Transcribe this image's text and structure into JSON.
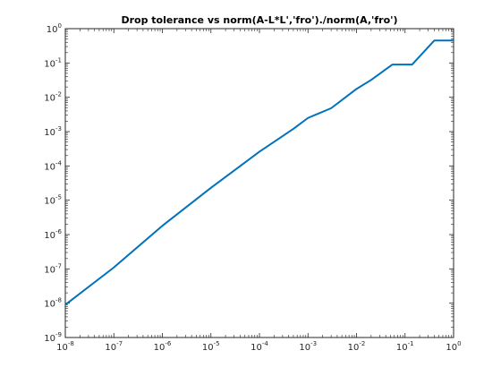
{
  "chart_data": {
    "type": "line",
    "title": "Drop tolerance vs norm(A-L*L','fro')./norm(A,'fro')",
    "xlabel": "",
    "ylabel": "",
    "x_scale": "log",
    "y_scale": "log",
    "xlim": [
      1e-08,
      1
    ],
    "ylim": [
      1e-09,
      1
    ],
    "grid": false,
    "line_color": "#0072bd",
    "x_ticks": [
      {
        "base": "10",
        "exp": "-8",
        "value": 1e-08
      },
      {
        "base": "10",
        "exp": "-7",
        "value": 1e-07
      },
      {
        "base": "10",
        "exp": "-6",
        "value": 1e-06
      },
      {
        "base": "10",
        "exp": "-5",
        "value": 1e-05
      },
      {
        "base": "10",
        "exp": "-4",
        "value": 0.0001
      },
      {
        "base": "10",
        "exp": "-3",
        "value": 0.001
      },
      {
        "base": "10",
        "exp": "-2",
        "value": 0.01
      },
      {
        "base": "10",
        "exp": "-1",
        "value": 0.1
      },
      {
        "base": "10",
        "exp": "0",
        "value": 1
      }
    ],
    "y_ticks": [
      {
        "base": "10",
        "exp": "-9",
        "value": 1e-09
      },
      {
        "base": "10",
        "exp": "-8",
        "value": 1e-08
      },
      {
        "base": "10",
        "exp": "-7",
        "value": 1e-07
      },
      {
        "base": "10",
        "exp": "-6",
        "value": 1e-06
      },
      {
        "base": "10",
        "exp": "-5",
        "value": 1e-05
      },
      {
        "base": "10",
        "exp": "-4",
        "value": 0.0001
      },
      {
        "base": "10",
        "exp": "-3",
        "value": 0.001
      },
      {
        "base": "10",
        "exp": "-2",
        "value": 0.01
      },
      {
        "base": "10",
        "exp": "-1",
        "value": 0.1
      },
      {
        "base": "10",
        "exp": "0",
        "value": 1
      }
    ],
    "series": [
      {
        "x": [
          1e-08,
          1e-07,
          1e-06,
          1e-05,
          0.0001,
          0.0005,
          0.001,
          0.003,
          0.01,
          0.02,
          0.055,
          0.14,
          0.4,
          1
        ],
        "y": [
          9e-09,
          1.1e-07,
          1.8e-06,
          2.3e-05,
          0.00026,
          0.0012,
          0.0025,
          0.0048,
          0.0175,
          0.032,
          0.09,
          0.09,
          0.45,
          0.45
        ]
      }
    ]
  }
}
